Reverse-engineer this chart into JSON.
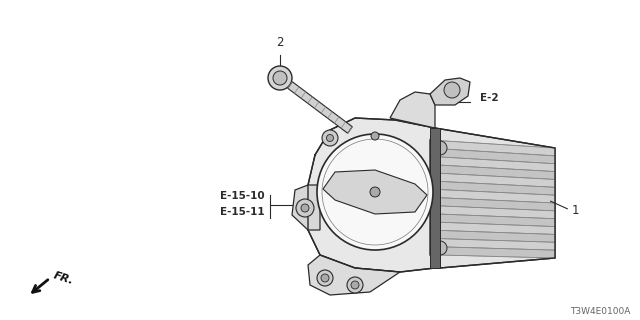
{
  "background_color": "#ffffff",
  "figure_width": 6.4,
  "figure_height": 3.2,
  "dpi": 100,
  "labels": {
    "part1": "1",
    "part2": "2",
    "partE2": "E-2",
    "partE1510": "E-15-10",
    "partE1511": "E-15-11",
    "fr": "FR.",
    "code": "T3W4E0100A"
  },
  "line_color": "#2a2a2a",
  "fill_light": "#f0f0f0",
  "fill_mid": "#d8d8d8",
  "fill_dark": "#bbbbbb"
}
